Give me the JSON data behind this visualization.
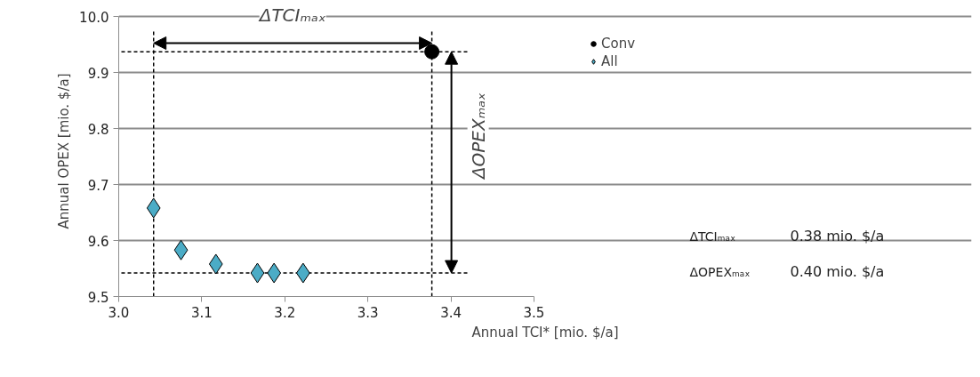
{
  "chart_data": {
    "type": "scatter",
    "xlabel": "Annual TCI* [mio. $/a]",
    "ylabel": "Annual OPEX [mio. $/a]",
    "xlim": [
      3.0,
      3.5
    ],
    "xticks": [
      {
        "value": 3.0,
        "label": "3.0"
      },
      3.1,
      3.2,
      3.3,
      3.4,
      3.5
    ],
    "ylim": [
      9.5,
      10.0
    ],
    "yticks": [
      9.5,
      9.6,
      9.7,
      9.8,
      9.9,
      {
        "value": 10.0,
        "label": "10.0"
      }
    ],
    "grid": "y",
    "legend": "right",
    "series": [
      {
        "name": "Conv",
        "color": "#000000",
        "marker": "circle",
        "x": [
          3.377
        ],
        "values": [
          9.937
        ]
      },
      {
        "name": "All",
        "color": "#4bacc6",
        "marker": "diamond",
        "x": [
          3.042,
          3.075,
          3.117,
          3.167,
          3.187,
          3.222
        ],
        "values": [
          9.658,
          9.583,
          9.558,
          9.542,
          9.542,
          9.542
        ]
      }
    ],
    "ref_lines": [
      {
        "axis": "x",
        "value": 3.042,
        "line_style": "dashed",
        "color": "#000000"
      },
      {
        "axis": "x",
        "value": 3.377,
        "line_style": "dashed",
        "color": "#000000"
      },
      {
        "axis": "y",
        "value": 9.937,
        "line_style": "dashed",
        "color": "#000000"
      },
      {
        "axis": "y",
        "value": 9.542,
        "line_style": "dashed",
        "color": "#000000"
      }
    ],
    "annotations": [
      "ΔTCIₘₐₓ",
      "ΔOPEXₘₐₓ",
      "ΔTCIₘₐₓ",
      "0.38 mio. $/a",
      "ΔOPEXₘₐₓ",
      "0.40 mio. $/a"
    ]
  }
}
